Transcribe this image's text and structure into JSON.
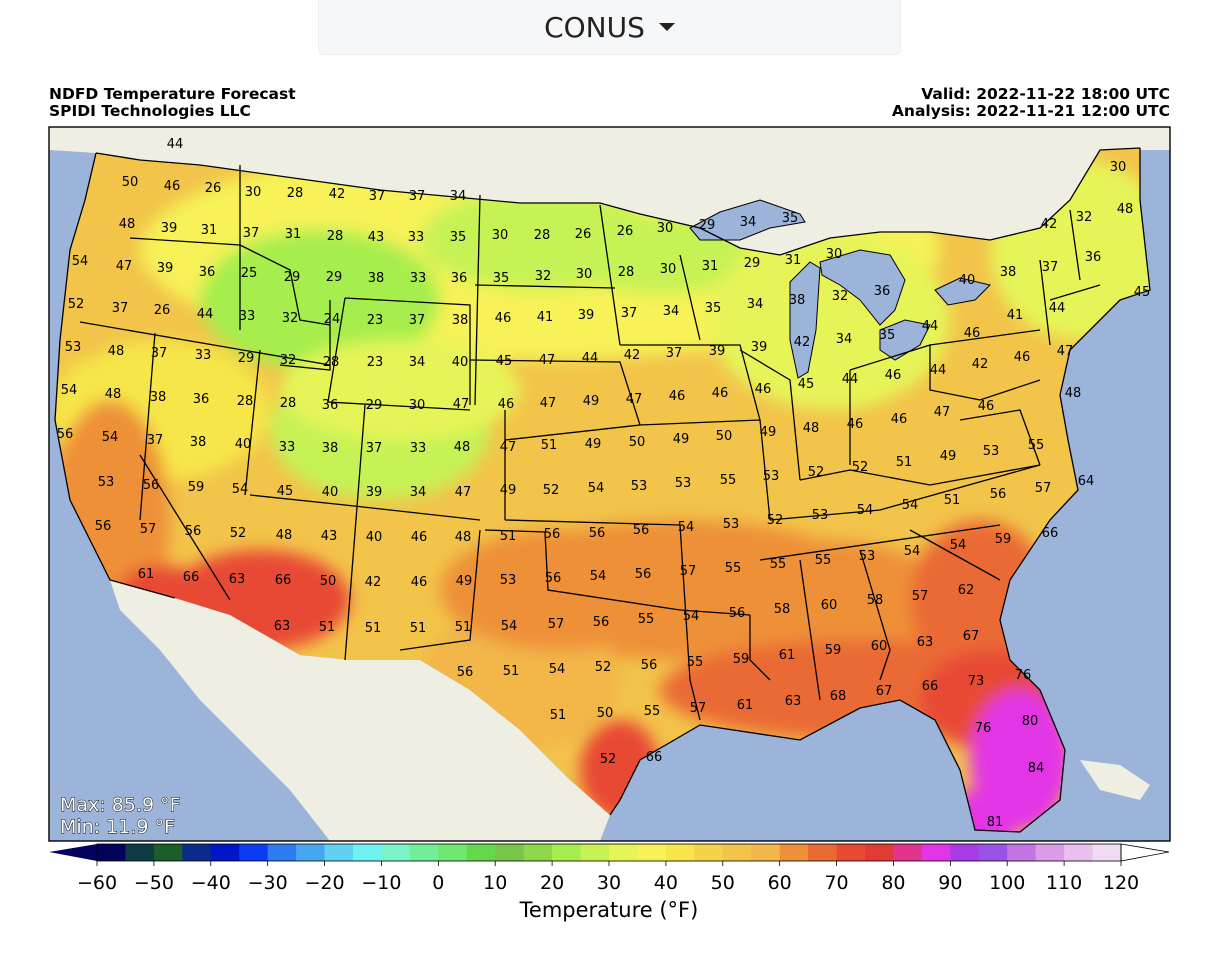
{
  "region_selector": {
    "label": "CONUS",
    "icon": "caret-down-icon"
  },
  "header": {
    "title": "NDFD Temperature Forecast",
    "source": "SPIDI Technologies LLC",
    "valid": "Valid: 2022-11-22 18:00 UTC",
    "analysis": "Analysis: 2022-11-21 12:00 UTC"
  },
  "stats": {
    "max": "Max: 85.9 °F",
    "min": "Min: 11.9 °F"
  },
  "colorbar": {
    "title": "Temperature (°F)",
    "ticks": [
      "−60",
      "−50",
      "−40",
      "−30",
      "−20",
      "−10",
      "0",
      "10",
      "20",
      "30",
      "40",
      "50",
      "60",
      "70",
      "80",
      "90",
      "100",
      "110",
      "120"
    ],
    "tick_values": [
      -60,
      -50,
      -40,
      -30,
      -20,
      -10,
      0,
      10,
      20,
      30,
      40,
      50,
      60,
      70,
      80,
      90,
      100,
      110,
      120
    ],
    "bins": [
      {
        "from": -60,
        "to": -55,
        "color": "#03035e"
      },
      {
        "from": -55,
        "to": -50,
        "color": "#0e3b46"
      },
      {
        "from": -50,
        "to": -45,
        "color": "#1a5e2c"
      },
      {
        "from": -45,
        "to": -40,
        "color": "#0b2a8c"
      },
      {
        "from": -40,
        "to": -35,
        "color": "#0016c8"
      },
      {
        "from": -35,
        "to": -30,
        "color": "#0b3cf2"
      },
      {
        "from": -30,
        "to": -25,
        "color": "#2f7cf2"
      },
      {
        "from": -25,
        "to": -20,
        "color": "#47a6f0"
      },
      {
        "from": -20,
        "to": -15,
        "color": "#5fd2f2"
      },
      {
        "from": -15,
        "to": -10,
        "color": "#6ef3f2"
      },
      {
        "from": -10,
        "to": -5,
        "color": "#79f3c8"
      },
      {
        "from": -5,
        "to": 0,
        "color": "#70ee98"
      },
      {
        "from": 0,
        "to": 5,
        "color": "#6ee86e"
      },
      {
        "from": 5,
        "to": 10,
        "color": "#64d84a"
      },
      {
        "from": 10,
        "to": 15,
        "color": "#78c64a"
      },
      {
        "from": 15,
        "to": 20,
        "color": "#8fd84a"
      },
      {
        "from": 20,
        "to": 25,
        "color": "#a6ee4e"
      },
      {
        "from": 25,
        "to": 30,
        "color": "#c6f254"
      },
      {
        "from": 30,
        "to": 35,
        "color": "#e6f458"
      },
      {
        "from": 35,
        "to": 40,
        "color": "#f6f258"
      },
      {
        "from": 40,
        "to": 45,
        "color": "#f6e64a"
      },
      {
        "from": 45,
        "to": 50,
        "color": "#f4d24a"
      },
      {
        "from": 50,
        "to": 55,
        "color": "#f2c44a"
      },
      {
        "from": 55,
        "to": 60,
        "color": "#f2b64a"
      },
      {
        "from": 60,
        "to": 65,
        "color": "#ee9038"
      },
      {
        "from": 65,
        "to": 70,
        "color": "#ea6a34"
      },
      {
        "from": 70,
        "to": 75,
        "color": "#e84a34"
      },
      {
        "from": 75,
        "to": 80,
        "color": "#e23a34"
      },
      {
        "from": 80,
        "to": 85,
        "color": "#e2348c"
      },
      {
        "from": 85,
        "to": 90,
        "color": "#e235e6"
      },
      {
        "from": 90,
        "to": 95,
        "color": "#a83ae8"
      },
      {
        "from": 95,
        "to": 100,
        "color": "#9a52e6"
      },
      {
        "from": 100,
        "to": 105,
        "color": "#c474e4"
      },
      {
        "from": 105,
        "to": 110,
        "color": "#dc9ce8"
      },
      {
        "from": 110,
        "to": 115,
        "color": "#e8c0ee"
      },
      {
        "from": 115,
        "to": 120,
        "color": "#f0dcf2"
      }
    ],
    "under_color": "#03035e",
    "over_color": "#ffffff"
  },
  "colors": {
    "ocean": "#9cb3da",
    "land": "#eeeee2",
    "lakes": "#9cb3da"
  },
  "temperature_labels": [
    "44",
    "50",
    "46",
    "26",
    "30",
    "28",
    "42",
    "37",
    "37",
    "34",
    "48",
    "39",
    "31",
    "37",
    "31",
    "28",
    "43",
    "33",
    "35",
    "30",
    "28",
    "26",
    "26",
    "30",
    "29",
    "34",
    "35",
    "32",
    "48",
    "30",
    "54",
    "47",
    "39",
    "36",
    "25",
    "29",
    "29",
    "38",
    "33",
    "36",
    "35",
    "32",
    "30",
    "28",
    "30",
    "31",
    "29",
    "31",
    "30",
    "36",
    "37",
    "42",
    "45",
    "52",
    "37",
    "26",
    "44",
    "33",
    "32",
    "24",
    "23",
    "37",
    "38",
    "46",
    "41",
    "39",
    "37",
    "34",
    "35",
    "34",
    "38",
    "32",
    "36",
    "40",
    "38",
    "41",
    "44",
    "53",
    "48",
    "37",
    "33",
    "29",
    "32",
    "28",
    "23",
    "34",
    "40",
    "45",
    "47",
    "44",
    "42",
    "37",
    "39",
    "39",
    "42",
    "34",
    "35",
    "44",
    "46",
    "44",
    "42",
    "46",
    "47",
    "54",
    "48",
    "38",
    "36",
    "28",
    "28",
    "36",
    "29",
    "30",
    "47",
    "46",
    "47",
    "49",
    "47",
    "46",
    "46",
    "46",
    "45",
    "44",
    "46",
    "47",
    "46",
    "48",
    "56",
    "54",
    "37",
    "38",
    "40",
    "33",
    "38",
    "37",
    "33",
    "48",
    "47",
    "51",
    "49",
    "50",
    "49",
    "50",
    "49",
    "48",
    "46",
    "46",
    "49",
    "53",
    "55",
    "53",
    "56",
    "59",
    "54",
    "45",
    "40",
    "39",
    "34",
    "47",
    "49",
    "52",
    "54",
    "53",
    "53",
    "55",
    "53",
    "52",
    "52",
    "51",
    "51",
    "56",
    "57",
    "64",
    "56",
    "57",
    "56",
    "52",
    "48",
    "43",
    "40",
    "46",
    "48",
    "51",
    "56",
    "56",
    "56",
    "54",
    "53",
    "52",
    "53",
    "54",
    "54",
    "54",
    "59",
    "66",
    "61",
    "66",
    "63",
    "66",
    "50",
    "42",
    "46",
    "49",
    "53",
    "56",
    "54",
    "56",
    "57",
    "55",
    "55",
    "55",
    "53",
    "54",
    "57",
    "62",
    "63",
    "51",
    "51",
    "51",
    "51",
    "54",
    "57",
    "56",
    "55",
    "54",
    "56",
    "58",
    "60",
    "58",
    "63",
    "67",
    "56",
    "51",
    "54",
    "52",
    "56",
    "55",
    "59",
    "61",
    "59",
    "60",
    "51",
    "50",
    "55",
    "57",
    "61",
    "63",
    "68",
    "67",
    "66",
    "73",
    "76",
    "52",
    "66",
    "76",
    "80",
    "84",
    "81"
  ]
}
